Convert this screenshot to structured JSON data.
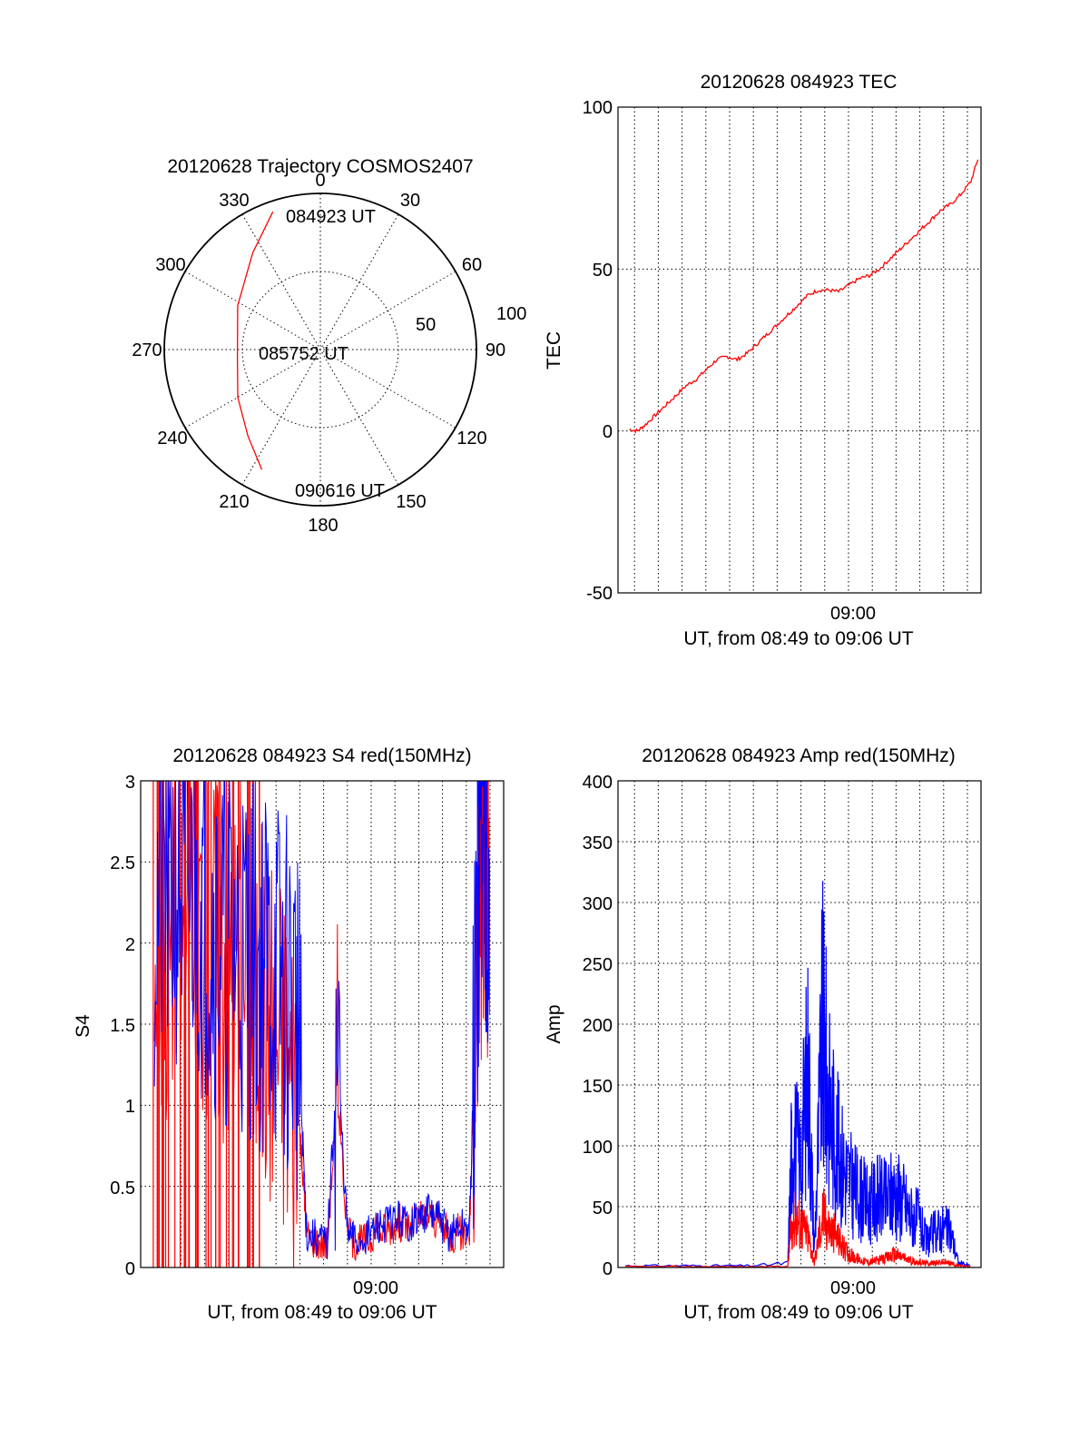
{
  "chart_data": [
    {
      "type": "polar",
      "title": "20120628 Trajectory COSMOS2407",
      "azimuth_labels": [
        "0",
        "30",
        "60",
        "90",
        "120",
        "150",
        "180",
        "210",
        "240",
        "270",
        "300",
        "330"
      ],
      "radial_labels": [
        "50",
        "100"
      ],
      "point_labels": [
        "084923 UT",
        "085752 UT",
        "090616 UT"
      ],
      "series": [
        {
          "color": "#ff0000",
          "points_az_el": [
            [
              341,
              6
            ],
            [
              325,
              22
            ],
            [
              298,
              36
            ],
            [
              265,
              42
            ],
            [
              240,
              35
            ],
            [
              220,
              25
            ],
            [
              206,
              13
            ]
          ]
        }
      ]
    },
    {
      "type": "line",
      "title": "20120628 084923 TEC",
      "ylabel": "TEC",
      "xlabel": "UT, from 08:49 to 09:06 UT",
      "x_tick_labels": [
        "09:00"
      ],
      "y_tick_labels": [
        "100",
        "50",
        "0",
        "-50"
      ],
      "ylim": [
        -50,
        100
      ],
      "xlim_minutes_after_0849": [
        0,
        17.4
      ],
      "series": [
        {
          "color": "#ff0000",
          "x_minutes_after_0849": [
            0.2,
            0.6,
            1.0,
            1.5,
            2.0,
            2.5,
            3.0,
            3.5,
            4.0,
            4.5,
            5.0,
            5.5,
            6.0,
            6.5,
            7.0,
            7.5,
            8.0,
            8.5,
            9.0,
            9.5,
            10.0,
            10.5,
            11.0,
            11.5,
            12.0,
            12.5,
            13.0,
            13.5,
            14.0,
            14.5,
            15.0,
            15.5,
            16.0,
            16.5,
            17.0,
            17.4
          ],
          "values": [
            0.5,
            0,
            2,
            5,
            8,
            11,
            14,
            16,
            19,
            22,
            23,
            22,
            24,
            27,
            30,
            33,
            36,
            39,
            42,
            43.5,
            43.5,
            43,
            45,
            47,
            48,
            50,
            53,
            56,
            59,
            62,
            65,
            68,
            70,
            73,
            77,
            85
          ]
        }
      ]
    },
    {
      "type": "line",
      "title": "20120628 084923 S4 red(150MHz)",
      "ylabel": "S4",
      "xlabel": "UT, from 08:49 to 09:06 UT",
      "x_tick_labels": [
        "09:00"
      ],
      "y_tick_labels": [
        "3",
        "2.5",
        "2",
        "1.5",
        "1",
        "0.5",
        "0"
      ],
      "ylim": [
        0,
        3
      ],
      "series": [
        {
          "color": "#0000ff",
          "x_minutes_after_0849": [
            0.5,
            1.5,
            2.5,
            3.5,
            4.5,
            5.5,
            6.5,
            7.5,
            8.0,
            8.5,
            9.0,
            9.5,
            10.0,
            10.5,
            11.0,
            11.5,
            12.0,
            12.5,
            13.0,
            13.5,
            14.0,
            14.5,
            15.0,
            15.5,
            16.0,
            16.5,
            17.0
          ],
          "values": [
            2.2,
            2.4,
            2.3,
            2.1,
            2.0,
            1.9,
            1.8,
            1.6,
            0.2,
            0.18,
            0.15,
            1.3,
            0.2,
            0.15,
            0.2,
            0.25,
            0.28,
            0.3,
            0.27,
            0.3,
            0.35,
            0.3,
            0.2,
            0.25,
            0.25,
            2.5,
            2.6
          ]
        },
        {
          "color": "#ff0000",
          "x_minutes_after_0849": [
            0.5,
            1.5,
            2.5,
            3.5,
            4.5,
            5.5,
            6.5,
            7.5,
            8.0,
            8.5,
            9.0,
            9.5,
            10.0,
            10.5,
            11.0,
            11.5,
            12.0,
            12.5,
            13.0,
            13.5,
            14.0,
            14.5,
            15.0,
            15.5,
            16.0,
            16.5,
            17.0
          ],
          "values": [
            2.0,
            2.1,
            2.2,
            2.0,
            1.9,
            1.7,
            1.5,
            1.1,
            0.2,
            0.17,
            0.15,
            1.1,
            0.2,
            0.15,
            0.18,
            0.22,
            0.25,
            0.28,
            0.25,
            0.3,
            0.32,
            0.28,
            0.2,
            0.22,
            0.22,
            2.4,
            2.5
          ]
        }
      ]
    },
    {
      "type": "line",
      "title": "20120628 084923 Amp red(150MHz)",
      "ylabel": "Amp",
      "xlabel": "UT, from 08:49 to 09:06 UT",
      "x_tick_labels": [
        "09:00"
      ],
      "y_tick_labels": [
        "400",
        "350",
        "300",
        "250",
        "200",
        "150",
        "100",
        "50",
        "0"
      ],
      "ylim": [
        0,
        400
      ],
      "series": [
        {
          "color": "#0000ff",
          "x_minutes_after_0849": [
            0,
            1,
            2,
            3,
            4,
            5,
            6,
            7,
            8.0,
            8.2,
            8.6,
            9.0,
            9.3,
            9.7,
            10.0,
            10.4,
            10.8,
            11.2,
            11.6,
            12.0,
            12.4,
            12.8,
            13.2,
            13.6,
            14.0,
            14.4,
            14.8,
            15.2,
            15.6,
            16.0,
            16.4,
            17.0
          ],
          "values": [
            2,
            2,
            2,
            2,
            2,
            2,
            2,
            3,
            5,
            150,
            120,
            230,
            20,
            270,
            190,
            140,
            110,
            90,
            80,
            70,
            80,
            75,
            85,
            80,
            60,
            55,
            30,
            40,
            45,
            40,
            5,
            2
          ]
        },
        {
          "color": "#ff0000",
          "x_minutes_after_0849": [
            0,
            1,
            2,
            3,
            4,
            5,
            6,
            7,
            8.0,
            8.2,
            8.6,
            9.0,
            9.3,
            9.7,
            10.0,
            10.4,
            10.8,
            11.2,
            11.6,
            12.0,
            12.4,
            12.8,
            13.2,
            13.6,
            14.0,
            14.4,
            14.8,
            15.2,
            15.6,
            16.0,
            16.4,
            17.0
          ],
          "values": [
            1,
            1,
            1,
            1,
            1,
            1,
            1,
            1,
            2,
            55,
            50,
            35,
            5,
            60,
            45,
            35,
            20,
            12,
            8,
            6,
            8,
            10,
            15,
            12,
            8,
            6,
            5,
            5,
            6,
            5,
            2,
            1
          ]
        }
      ]
    }
  ]
}
